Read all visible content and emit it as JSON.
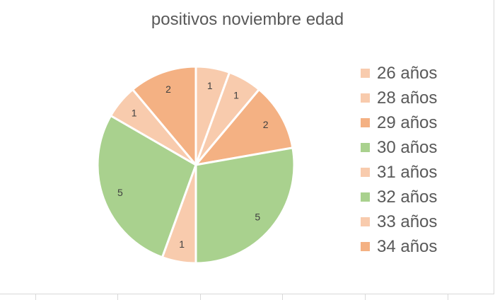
{
  "chart_data": {
    "type": "pie",
    "title": "positivos noviembre edad",
    "slices": [
      {
        "label": "26 años",
        "value": 1,
        "color": "#F8CBAD"
      },
      {
        "label": "28 años",
        "value": 1,
        "color": "#F8CBAD"
      },
      {
        "label": "29 años",
        "value": 2,
        "color": "#F4B183"
      },
      {
        "label": "30 años",
        "value": 5,
        "color": "#A9D18E"
      },
      {
        "label": "31 años",
        "value": 1,
        "color": "#F8CBAD"
      },
      {
        "label": "32 años",
        "value": 5,
        "color": "#A9D18E"
      },
      {
        "label": "33 años",
        "value": 1,
        "color": "#F8CBAD"
      },
      {
        "label": "34 años",
        "value": 2,
        "color": "#F4B183"
      }
    ],
    "legend_position": "right",
    "data_labels": true
  }
}
